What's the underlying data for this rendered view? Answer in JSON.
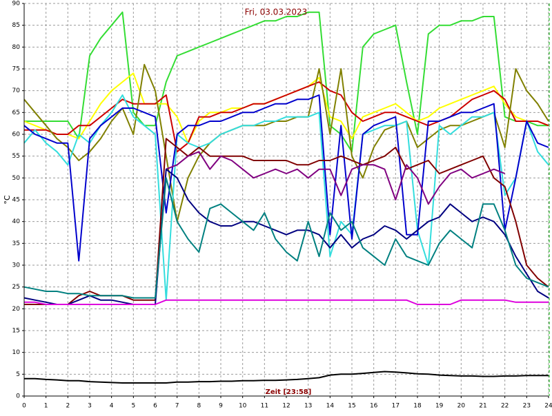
{
  "chart_data": {
    "type": "line",
    "title": "Fri, 03.03.2023",
    "x_label": "Zeit [23:58]",
    "y_label": "°C",
    "xlim": [
      0,
      24
    ],
    "ylim": [
      0,
      90
    ],
    "xticks": [
      0,
      1,
      2,
      3,
      4,
      5,
      6,
      7,
      8,
      9,
      10,
      11,
      12,
      13,
      14,
      15,
      16,
      17,
      18,
      19,
      20,
      21,
      22,
      23,
      24
    ],
    "yticks": [
      0,
      5,
      10,
      15,
      20,
      25,
      30,
      35,
      40,
      45,
      50,
      55,
      60,
      65,
      70,
      75,
      80,
      85,
      90
    ],
    "grid": true,
    "x": [
      0,
      0.5,
      1,
      1.5,
      2,
      2.5,
      3,
      3.5,
      4,
      4.5,
      5,
      5.5,
      6,
      6.5,
      7,
      7.5,
      8,
      8.5,
      9,
      9.5,
      10,
      10.5,
      11,
      11.5,
      12,
      12.5,
      13,
      13.5,
      14,
      14.5,
      15,
      15.5,
      16,
      16.5,
      17,
      17.5,
      18,
      18.5,
      19,
      19.5,
      20,
      20.5,
      21,
      21.5,
      22,
      22.5,
      23,
      23.5,
      24
    ],
    "series": [
      {
        "color": "#33dd33",
        "values": [
          63,
          63,
          63,
          63,
          63,
          59,
          78,
          82,
          85,
          88,
          65,
          62,
          62,
          72,
          78,
          79,
          80,
          81,
          82,
          83,
          84,
          85,
          86,
          86,
          87,
          87,
          88,
          88,
          62,
          60,
          56,
          80,
          83,
          84,
          85,
          72,
          60,
          83,
          85,
          85,
          86,
          86,
          87,
          87,
          64,
          63,
          63,
          62,
          62
        ]
      },
      {
        "color": "#ffff00",
        "values": [
          63,
          62,
          61,
          60,
          60,
          59,
          63,
          67,
          70,
          72,
          74,
          67,
          67,
          67,
          64,
          58,
          63,
          65,
          65,
          66,
          66,
          67,
          67,
          68,
          69,
          70,
          71,
          73,
          64,
          63,
          59,
          64,
          65,
          66,
          67,
          65,
          63,
          64,
          66,
          67,
          68,
          69,
          70,
          71,
          67,
          64,
          63,
          63,
          62
        ]
      },
      {
        "color": "#cc0000",
        "values": [
          61,
          61,
          61,
          60,
          60,
          62,
          62,
          64,
          66,
          68,
          67,
          67,
          67,
          69,
          56,
          58,
          64,
          64,
          65,
          65,
          66,
          67,
          67,
          68,
          69,
          70,
          71,
          72,
          70,
          69,
          65,
          63,
          64,
          65,
          65,
          64,
          63,
          62,
          63,
          64,
          66,
          68,
          69,
          70,
          68,
          63,
          63,
          63,
          62
        ]
      },
      {
        "color": "#808000",
        "values": [
          68,
          65,
          62,
          59,
          57,
          54,
          56,
          59,
          63,
          66,
          60,
          76,
          70,
          55,
          40,
          50,
          55,
          58,
          60,
          61,
          62,
          62,
          62,
          63,
          63,
          64,
          64,
          75,
          60,
          75,
          55,
          50,
          57,
          61,
          62,
          63,
          57,
          59,
          61,
          62,
          62,
          63,
          64,
          65,
          57,
          75,
          70,
          67,
          63
        ]
      },
      {
        "color": "#33dddd",
        "values": [
          58,
          61,
          58,
          56,
          53,
          60,
          58,
          62,
          65,
          69,
          64,
          62,
          60,
          22,
          60,
          58,
          57,
          58,
          60,
          61,
          62,
          62,
          63,
          63,
          64,
          64,
          64,
          65,
          32,
          40,
          37,
          60,
          61,
          62,
          62,
          63,
          38,
          30,
          62,
          60,
          62,
          64,
          64,
          65,
          46,
          50,
          63,
          56,
          53
        ]
      },
      {
        "color": "#0000cc",
        "values": [
          62,
          60,
          59,
          58,
          58,
          31,
          59,
          62,
          64,
          66,
          66,
          65,
          64,
          42,
          60,
          62,
          62,
          63,
          63,
          64,
          65,
          65,
          66,
          67,
          67,
          68,
          68,
          69,
          37,
          62,
          36,
          60,
          62,
          63,
          64,
          37,
          37,
          63,
          63,
          64,
          65,
          65,
          66,
          67,
          38,
          50,
          63,
          58,
          57
        ]
      },
      {
        "color": "#800000",
        "values": [
          21,
          21,
          21,
          21,
          21,
          23,
          24,
          23,
          23,
          23,
          22,
          22,
          22,
          59,
          57,
          55,
          57,
          55,
          55,
          55,
          55,
          54,
          54,
          54,
          54,
          53,
          53,
          54,
          54,
          55,
          54,
          53,
          54,
          55,
          57,
          52,
          53,
          54,
          51,
          52,
          53,
          54,
          55,
          50,
          48,
          40,
          30,
          27,
          25
        ]
      },
      {
        "color": "#800080",
        "values": [
          null,
          null,
          null,
          null,
          null,
          null,
          null,
          null,
          null,
          null,
          null,
          null,
          null,
          52,
          53,
          55,
          56,
          52,
          55,
          54,
          52,
          50,
          51,
          52,
          51,
          52,
          50,
          52,
          52,
          46,
          52,
          53,
          53,
          52,
          45,
          53,
          50,
          44,
          48,
          51,
          52,
          50,
          51,
          52,
          51,
          null,
          null,
          null,
          null
        ]
      },
      {
        "color": "#000080",
        "values": [
          22.5,
          22,
          21.5,
          21,
          21,
          22,
          23,
          22,
          22,
          21.5,
          21,
          21,
          21,
          52,
          50,
          45,
          42,
          40,
          39,
          39,
          40,
          40,
          39,
          38,
          37,
          38,
          38,
          37,
          34,
          37,
          34,
          36,
          37,
          39,
          38,
          36,
          38,
          40,
          41,
          44,
          42,
          40,
          41,
          40,
          37,
          32,
          28,
          24,
          22.5
        ]
      },
      {
        "color": "#008080",
        "values": [
          25,
          24.5,
          24,
          24,
          23.5,
          23.5,
          23,
          23,
          23,
          23,
          22.5,
          22.5,
          22.5,
          50,
          40,
          36,
          33,
          43,
          44,
          42,
          40,
          38,
          42,
          36,
          33,
          31,
          40,
          32,
          42,
          38,
          40,
          34,
          32,
          30,
          36,
          32,
          31,
          30,
          35,
          38,
          36,
          34,
          44,
          44,
          38,
          30,
          27,
          26,
          25
        ]
      },
      {
        "color": "#dd00dd",
        "values": [
          21.5,
          21.5,
          21,
          21,
          21,
          21,
          21,
          21,
          21,
          21,
          21,
          21,
          21,
          22,
          22,
          22,
          22,
          22,
          22,
          22,
          22,
          22,
          22,
          22,
          22,
          22,
          22,
          22,
          22,
          22,
          22,
          22,
          22,
          22,
          22,
          22,
          21,
          21,
          21,
          21,
          22,
          22,
          22,
          22,
          22,
          21.5,
          21.5,
          21.5,
          21.5
        ]
      },
      {
        "color": "#000000",
        "values": [
          4,
          4,
          3.8,
          3.7,
          3.5,
          3.5,
          3.3,
          3.2,
          3.1,
          3,
          3,
          3,
          3,
          3,
          3.2,
          3.2,
          3.3,
          3.3,
          3.4,
          3.4,
          3.5,
          3.5,
          3.6,
          3.6,
          3.7,
          3.8,
          4,
          4.2,
          4.8,
          5,
          5,
          5.2,
          5.4,
          5.6,
          5.5,
          5.3,
          5.1,
          5,
          4.8,
          4.7,
          4.6,
          4.6,
          4.5,
          4.5,
          4.6,
          4.6,
          4.7,
          4.7,
          4.7
        ]
      }
    ]
  }
}
